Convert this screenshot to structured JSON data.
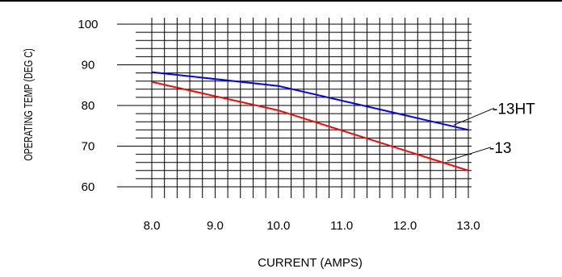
{
  "chart_data": {
    "type": "line",
    "title": "",
    "xlabel": "CURRENT (AMPS)",
    "ylabel": "OPERATING TEMP (DEG C)",
    "xlim": [
      8.0,
      13.0
    ],
    "ylim": [
      60,
      100
    ],
    "x_ticks": [
      "8.0",
      "9.0",
      "10.0",
      "11.0",
      "12.0",
      "13.0"
    ],
    "y_ticks": [
      "60",
      "70",
      "80",
      "90",
      "100"
    ],
    "grid": true,
    "legend": "inline labels at right end of lines",
    "series": [
      {
        "name": "-13HT",
        "color": "#0000ff",
        "x": [
          8.0,
          10.0,
          13.0
        ],
        "y": [
          88.2,
          84.8,
          74.0
        ]
      },
      {
        "name": "-13",
        "color": "#ff0000",
        "x": [
          8.0,
          10.0,
          13.0
        ],
        "y": [
          85.8,
          78.8,
          64.0
        ]
      }
    ]
  }
}
